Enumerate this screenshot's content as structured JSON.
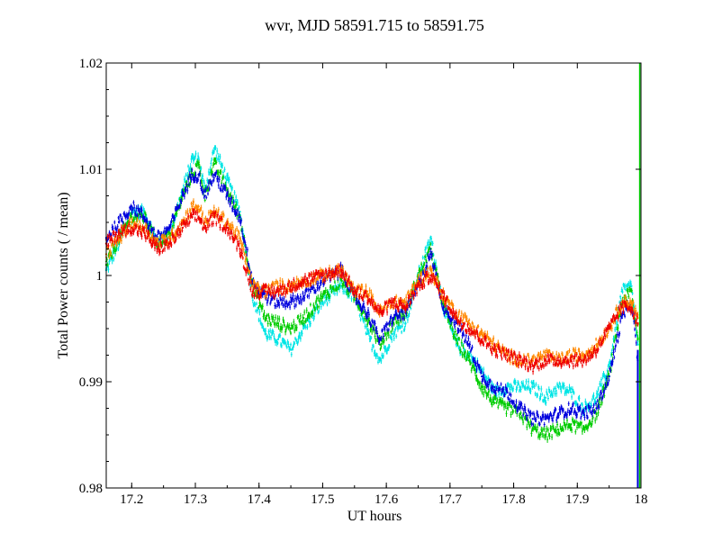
{
  "chart_data": {
    "type": "line",
    "title": "wvr, MJD 58591.715 to 58591.75",
    "xlabel": "UT hours",
    "ylabel": "Total Power counts ( / mean)",
    "xlim": [
      17.16,
      18.0
    ],
    "ylim": [
      0.98,
      1.02
    ],
    "xticks": [
      "17.2",
      "17.3",
      "17.4",
      "17.5",
      "17.6",
      "17.7",
      "17.8",
      "17.9",
      "18"
    ],
    "yticks": [
      "0.98",
      "0.99",
      "1",
      "1.01",
      "1.02"
    ],
    "grid": false,
    "legend": "none",
    "series": [
      {
        "color": "#00e5e5",
        "x": [
          17.16,
          17.18,
          17.2,
          17.22,
          17.24,
          17.26,
          17.28,
          17.295,
          17.305,
          17.315,
          17.33,
          17.35,
          17.37,
          17.39,
          17.41,
          17.43,
          17.45,
          17.47,
          17.5,
          17.53,
          17.55,
          17.57,
          17.59,
          17.61,
          17.63,
          17.65,
          17.67,
          17.69,
          17.71,
          17.73,
          17.75,
          17.77,
          17.79,
          17.81,
          17.83,
          17.85,
          17.87,
          17.89,
          17.91,
          17.93,
          17.95,
          17.97,
          17.985,
          17.995
        ],
        "values": [
          1.0005,
          1.003,
          1.006,
          1.006,
          1.003,
          1.004,
          1.008,
          1.011,
          1.011,
          1.008,
          1.012,
          1.009,
          1.006,
          0.998,
          0.9945,
          0.994,
          0.993,
          0.995,
          0.9975,
          0.999,
          0.998,
          0.9945,
          0.992,
          0.9945,
          0.9955,
          1.0,
          1.0035,
          0.997,
          0.9935,
          0.9925,
          0.991,
          0.989,
          0.9895,
          0.9895,
          0.9895,
          0.9885,
          0.9895,
          0.989,
          0.9875,
          0.9885,
          0.9915,
          0.9985,
          0.999,
          0.9935
        ]
      },
      {
        "color": "#00cc00",
        "x": [
          17.16,
          17.18,
          17.2,
          17.22,
          17.24,
          17.26,
          17.28,
          17.295,
          17.305,
          17.315,
          17.33,
          17.35,
          17.37,
          17.39,
          17.41,
          17.43,
          17.45,
          17.47,
          17.5,
          17.53,
          17.55,
          17.57,
          17.59,
          17.61,
          17.63,
          17.65,
          17.67,
          17.69,
          17.71,
          17.73,
          17.75,
          17.77,
          17.79,
          17.81,
          17.83,
          17.85,
          17.87,
          17.89,
          17.91,
          17.93,
          17.95,
          17.97,
          17.985,
          17.995
        ],
        "values": [
          1.001,
          1.0035,
          1.0055,
          1.0055,
          1.003,
          1.004,
          1.0075,
          1.0095,
          1.0105,
          1.0075,
          1.0105,
          1.008,
          1.0055,
          0.999,
          0.996,
          0.9955,
          0.995,
          0.996,
          0.998,
          0.9995,
          0.998,
          0.996,
          0.9935,
          0.9955,
          0.9965,
          1.0,
          1.0025,
          0.997,
          0.994,
          0.992,
          0.9895,
          0.988,
          0.9875,
          0.987,
          0.9855,
          0.985,
          0.9855,
          0.986,
          0.9855,
          0.987,
          0.9905,
          0.9975,
          0.9985,
          0.994
        ]
      },
      {
        "color": "#0000dd",
        "x": [
          17.16,
          17.18,
          17.2,
          17.22,
          17.24,
          17.26,
          17.28,
          17.295,
          17.305,
          17.315,
          17.33,
          17.35,
          17.37,
          17.39,
          17.41,
          17.43,
          17.45,
          17.47,
          17.5,
          17.53,
          17.55,
          17.57,
          17.59,
          17.61,
          17.63,
          17.65,
          17.67,
          17.69,
          17.71,
          17.73,
          17.75,
          17.77,
          17.79,
          17.81,
          17.83,
          17.85,
          17.87,
          17.89,
          17.91,
          17.93,
          17.95,
          17.97,
          17.985,
          17.995
        ],
        "values": [
          1.0035,
          1.005,
          1.0065,
          1.0055,
          1.0035,
          1.0045,
          1.0075,
          1.0095,
          1.0095,
          1.0075,
          1.0095,
          1.0075,
          1.0055,
          0.9995,
          0.998,
          0.9975,
          0.9975,
          0.998,
          0.9995,
          1.0005,
          0.998,
          0.9965,
          0.994,
          0.996,
          0.9965,
          0.999,
          1.002,
          0.997,
          0.9955,
          0.9935,
          0.9905,
          0.9895,
          0.989,
          0.9875,
          0.9865,
          0.9865,
          0.987,
          0.9875,
          0.987,
          0.9875,
          0.9905,
          0.996,
          0.9975,
          0.992
        ]
      },
      {
        "color": "#ff8800",
        "x": [
          17.16,
          17.18,
          17.2,
          17.22,
          17.24,
          17.26,
          17.28,
          17.295,
          17.305,
          17.315,
          17.33,
          17.35,
          17.37,
          17.39,
          17.41,
          17.43,
          17.45,
          17.47,
          17.5,
          17.53,
          17.55,
          17.57,
          17.59,
          17.61,
          17.63,
          17.65,
          17.67,
          17.69,
          17.71,
          17.73,
          17.75,
          17.77,
          17.79,
          17.81,
          17.83,
          17.85,
          17.87,
          17.89,
          17.91,
          17.93,
          17.95,
          17.97,
          17.985,
          17.995
        ],
        "values": [
          1.002,
          1.0035,
          1.005,
          1.0045,
          1.003,
          1.0035,
          1.005,
          1.0065,
          1.0065,
          1.005,
          1.006,
          1.005,
          1.0035,
          0.999,
          0.9985,
          0.999,
          0.999,
          0.9995,
          1.0,
          1.0005,
          0.9985,
          0.9985,
          0.9965,
          0.9975,
          0.9975,
          0.9995,
          1.0005,
          0.998,
          0.9965,
          0.9955,
          0.9945,
          0.9935,
          0.9925,
          0.992,
          0.992,
          0.9925,
          0.992,
          0.9925,
          0.9925,
          0.9935,
          0.995,
          0.9975,
          0.9975,
          0.996
        ]
      },
      {
        "color": "#ee0000",
        "x": [
          17.16,
          17.18,
          17.2,
          17.22,
          17.24,
          17.26,
          17.28,
          17.295,
          17.305,
          17.315,
          17.33,
          17.35,
          17.37,
          17.39,
          17.41,
          17.43,
          17.45,
          17.47,
          17.5,
          17.53,
          17.55,
          17.57,
          17.59,
          17.61,
          17.63,
          17.65,
          17.67,
          17.69,
          17.71,
          17.73,
          17.75,
          17.77,
          17.79,
          17.81,
          17.83,
          17.85,
          17.87,
          17.89,
          17.91,
          17.93,
          17.95,
          17.97,
          17.985,
          17.995
        ],
        "values": [
          1.003,
          1.004,
          1.0045,
          1.004,
          1.0025,
          1.003,
          1.0045,
          1.0055,
          1.0055,
          1.0045,
          1.0055,
          1.0045,
          1.0025,
          0.9985,
          0.9985,
          0.9985,
          0.999,
          0.9995,
          1.0,
          1.0005,
          0.9985,
          0.998,
          0.9965,
          0.9975,
          0.997,
          0.999,
          1.0,
          0.998,
          0.996,
          0.995,
          0.994,
          0.993,
          0.9925,
          0.992,
          0.9915,
          0.992,
          0.992,
          0.992,
          0.992,
          0.993,
          0.995,
          0.997,
          0.997,
          0.9955
        ]
      }
    ]
  }
}
